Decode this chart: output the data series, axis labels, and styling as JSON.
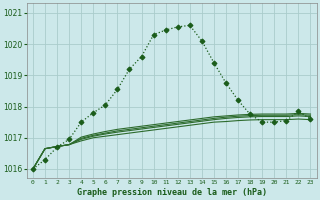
{
  "title": "Graphe pression niveau de la mer (hPa)",
  "bg_color": "#cce8ea",
  "grid_color": "#aacccc",
  "line_color_main": "#1a5c1a",
  "line_color_band": "#2d6b2d",
  "xlim": [
    -0.5,
    23.5
  ],
  "ylim": [
    1015.7,
    1021.3
  ],
  "yticks": [
    1016,
    1017,
    1018,
    1019,
    1020,
    1021
  ],
  "xtick_labels": [
    "0",
    "1",
    "2",
    "3",
    "4",
    "5",
    "6",
    "7",
    "8",
    "9",
    "10",
    "11",
    "12",
    "13",
    "14",
    "15",
    "16",
    "17",
    "18",
    "19",
    "20",
    "21",
    "22",
    "23"
  ],
  "series_main": [
    1016.0,
    1016.3,
    1016.7,
    1016.95,
    1017.5,
    1017.8,
    1018.05,
    1018.55,
    1019.2,
    1019.6,
    1020.3,
    1020.45,
    1020.55,
    1020.6,
    1020.1,
    1019.4,
    1018.75,
    1018.2,
    1017.75,
    1017.5,
    1017.5,
    1017.55,
    1017.85,
    1017.6
  ],
  "series_band1": [
    1016.0,
    1016.65,
    1016.72,
    1016.78,
    1016.9,
    1017.0,
    1017.05,
    1017.1,
    1017.15,
    1017.2,
    1017.25,
    1017.3,
    1017.35,
    1017.4,
    1017.45,
    1017.5,
    1017.52,
    1017.55,
    1017.57,
    1017.58,
    1017.58,
    1017.58,
    1017.6,
    1017.58
  ],
  "series_band2": [
    1016.0,
    1016.65,
    1016.72,
    1016.78,
    1016.95,
    1017.05,
    1017.12,
    1017.18,
    1017.23,
    1017.28,
    1017.33,
    1017.38,
    1017.43,
    1017.48,
    1017.53,
    1017.58,
    1017.62,
    1017.65,
    1017.67,
    1017.68,
    1017.68,
    1017.68,
    1017.7,
    1017.68
  ],
  "series_band3": [
    1016.0,
    1016.65,
    1016.72,
    1016.78,
    1016.98,
    1017.08,
    1017.15,
    1017.22,
    1017.27,
    1017.32,
    1017.37,
    1017.42,
    1017.47,
    1017.52,
    1017.57,
    1017.62,
    1017.66,
    1017.69,
    1017.71,
    1017.72,
    1017.72,
    1017.72,
    1017.74,
    1017.72
  ],
  "series_band4": [
    1016.0,
    1016.65,
    1016.72,
    1016.78,
    1017.02,
    1017.12,
    1017.2,
    1017.27,
    1017.32,
    1017.37,
    1017.42,
    1017.47,
    1017.52,
    1017.57,
    1017.62,
    1017.67,
    1017.7,
    1017.73,
    1017.75,
    1017.76,
    1017.76,
    1017.76,
    1017.78,
    1017.76
  ]
}
